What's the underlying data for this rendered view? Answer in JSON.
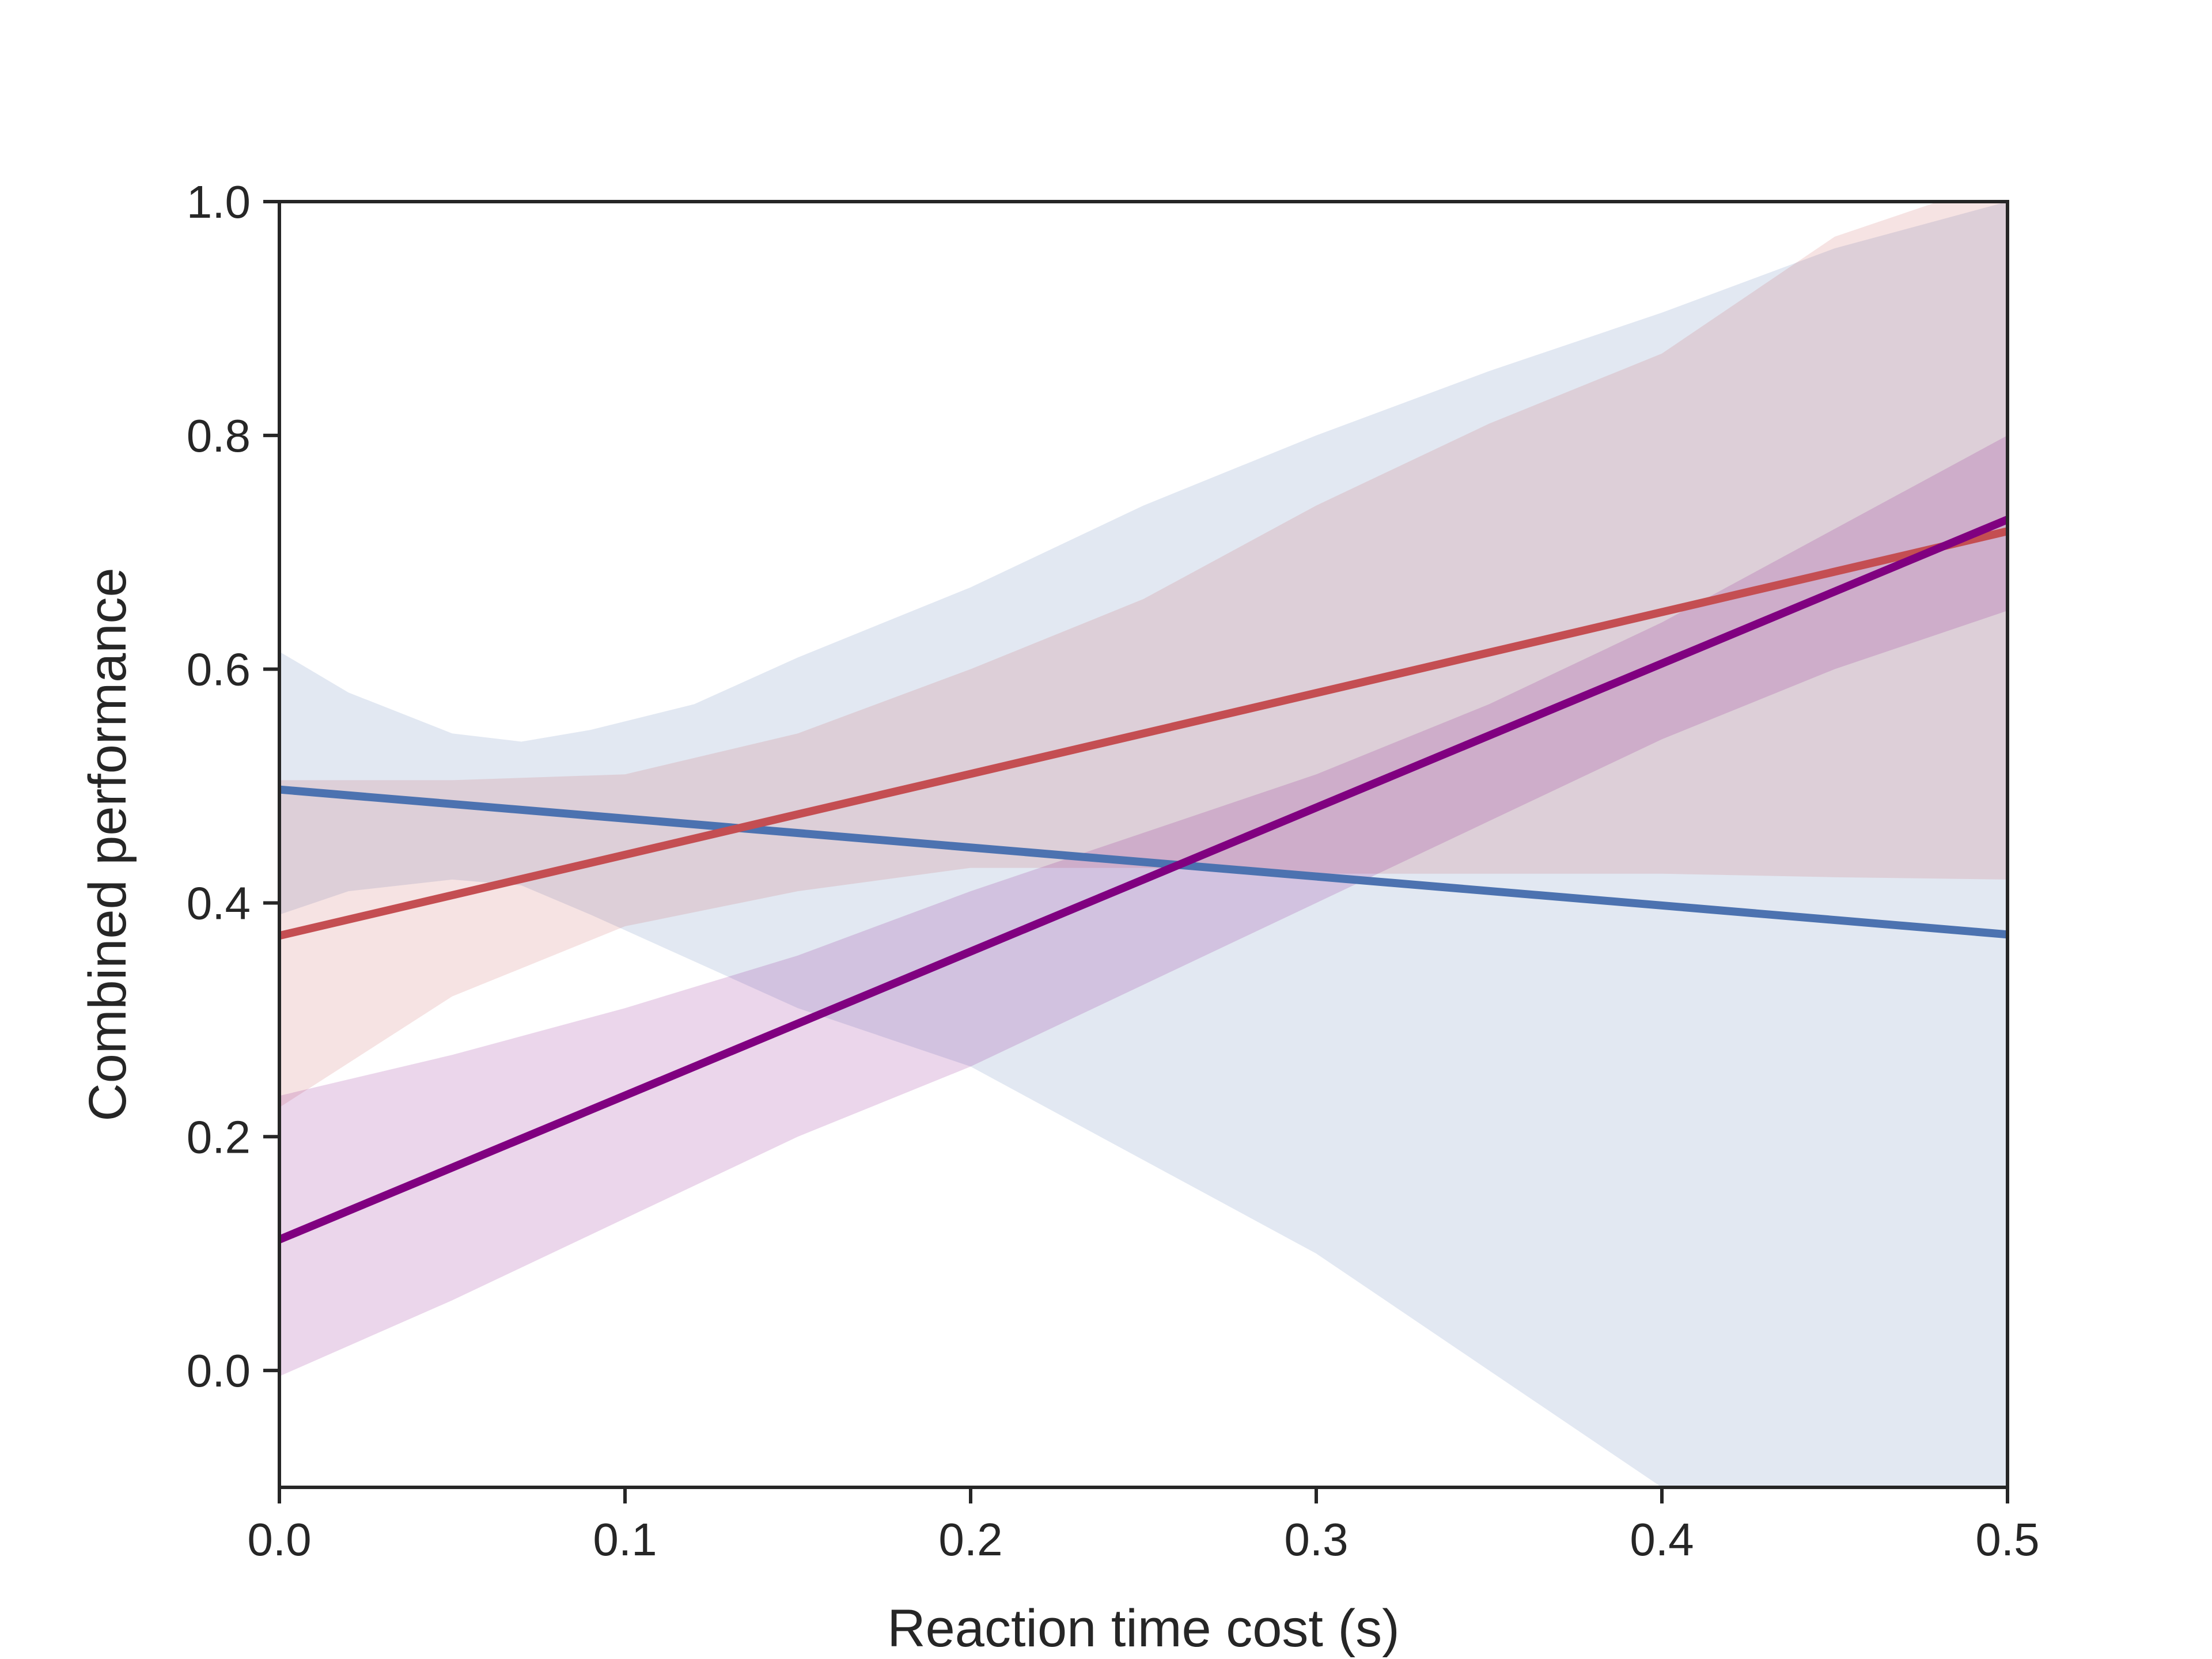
{
  "chart_data": {
    "type": "line",
    "title": "",
    "xlabel": "Reaction time cost (s)",
    "ylabel": "Combined performance",
    "xlim": [
      0,
      0.5
    ],
    "ylim": [
      -0.1,
      1.0
    ],
    "xticks": [
      0.0,
      0.1,
      0.2,
      0.3,
      0.4,
      0.5
    ],
    "xtick_labels": [
      "0.0",
      "0.1",
      "0.2",
      "0.3",
      "0.4",
      "0.5"
    ],
    "yticks": [
      0.0,
      0.2,
      0.4,
      0.6,
      0.8,
      1.0
    ],
    "ytick_labels": [
      "0.0",
      "0.2",
      "0.4",
      "0.6",
      "0.8",
      "1.0"
    ],
    "grid": false,
    "legend": "none",
    "series": [
      {
        "color": "#4c72b0",
        "x": [
          0.0,
          0.5
        ],
        "y": [
          0.497,
          0.373
        ],
        "band": {
          "x": [
            0.0,
            0.02,
            0.05,
            0.07,
            0.09,
            0.12,
            0.15,
            0.2,
            0.25,
            0.3,
            0.35,
            0.4,
            0.45,
            0.5
          ],
          "upper": [
            0.615,
            0.58,
            0.545,
            0.538,
            0.548,
            0.57,
            0.61,
            0.67,
            0.74,
            0.8,
            0.855,
            0.905,
            0.96,
            1.0
          ],
          "lower": [
            0.39,
            0.41,
            0.42,
            0.415,
            0.39,
            0.35,
            0.31,
            0.26,
            0.18,
            0.1,
            0.0,
            -0.1,
            -0.15,
            -0.15
          ]
        }
      },
      {
        "color": "#c44e52",
        "x": [
          0.0,
          0.5
        ],
        "y": [
          0.372,
          0.718
        ],
        "band": {
          "x": [
            0.0,
            0.05,
            0.1,
            0.15,
            0.2,
            0.25,
            0.3,
            0.35,
            0.4,
            0.45,
            0.5
          ],
          "upper": [
            0.505,
            0.505,
            0.51,
            0.545,
            0.6,
            0.66,
            0.74,
            0.81,
            0.87,
            0.97,
            1.02
          ],
          "lower": [
            0.225,
            0.32,
            0.38,
            0.41,
            0.43,
            0.43,
            0.425,
            0.425,
            0.425,
            0.422,
            0.42
          ]
        }
      },
      {
        "color": "#800080",
        "x": [
          0.0,
          0.5
        ],
        "y": [
          0.112,
          0.728
        ],
        "band": {
          "x": [
            0.0,
            0.05,
            0.1,
            0.15,
            0.2,
            0.25,
            0.3,
            0.35,
            0.4,
            0.45,
            0.5
          ],
          "upper": [
            0.235,
            0.27,
            0.31,
            0.355,
            0.41,
            0.46,
            0.51,
            0.57,
            0.64,
            0.72,
            0.8
          ],
          "lower": [
            -0.005,
            0.06,
            0.13,
            0.2,
            0.26,
            0.33,
            0.4,
            0.47,
            0.54,
            0.6,
            0.65
          ]
        }
      }
    ]
  }
}
